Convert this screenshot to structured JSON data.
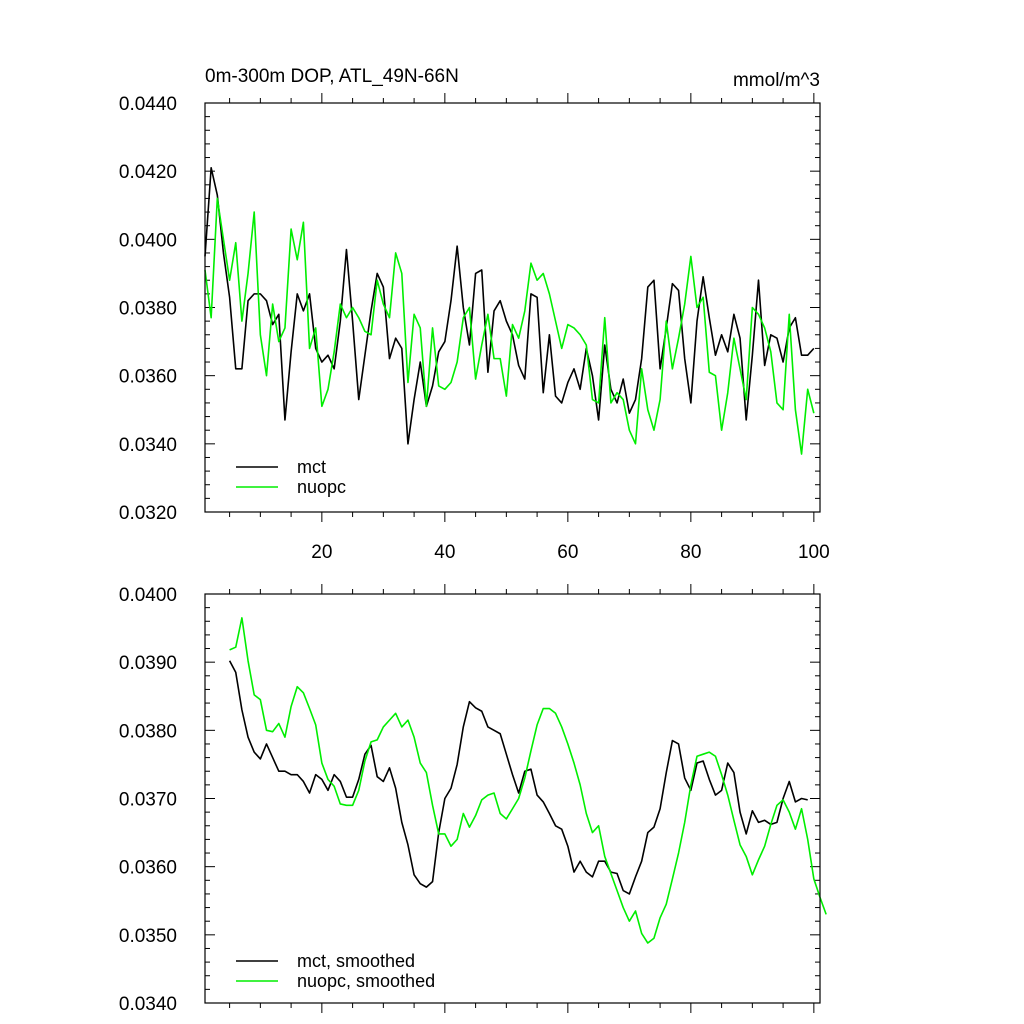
{
  "chart_data": [
    {
      "id": "top",
      "type": "line",
      "title": "0m-300m DOP, ATL_49N-66N",
      "units": "mmol/m^3",
      "xlabel": "",
      "ylabel": "",
      "xlim": [
        1,
        101
      ],
      "ylim": [
        0.032,
        0.044
      ],
      "x_ticks": [
        20,
        40,
        60,
        80,
        100
      ],
      "x_tick_labels": [
        "20",
        "40",
        "60",
        "80",
        "100"
      ],
      "y_ticks": [
        0.032,
        0.034,
        0.036,
        0.038,
        0.04,
        0.042,
        0.044
      ],
      "y_tick_labels": [
        "0.0320",
        "0.0340",
        "0.0360",
        "0.0380",
        "0.0400",
        "0.0420",
        "0.0440"
      ],
      "legend_position": "bottom-left",
      "series": [
        {
          "name": "mct",
          "color": "#000000",
          "x_start": 1,
          "values": [
            0.0395,
            0.0421,
            0.0413,
            0.0396,
            0.0383,
            0.0362,
            0.0362,
            0.0382,
            0.0384,
            0.0384,
            0.0382,
            0.0375,
            0.0378,
            0.0347,
            0.0367,
            0.0384,
            0.0379,
            0.0384,
            0.0368,
            0.0364,
            0.0366,
            0.0362,
            0.0376,
            0.0397,
            0.0376,
            0.0353,
            0.0366,
            0.0379,
            0.039,
            0.0386,
            0.0365,
            0.0371,
            0.0368,
            0.034,
            0.0353,
            0.0364,
            0.0351,
            0.0357,
            0.0367,
            0.037,
            0.0382,
            0.0398,
            0.038,
            0.0369,
            0.039,
            0.0391,
            0.0361,
            0.0379,
            0.0382,
            0.0376,
            0.0372,
            0.0363,
            0.0359,
            0.0384,
            0.0383,
            0.0355,
            0.0372,
            0.0354,
            0.0352,
            0.0358,
            0.0362,
            0.0356,
            0.0368,
            0.036,
            0.0347,
            0.0369,
            0.0356,
            0.0352,
            0.0359,
            0.0349,
            0.0353,
            0.0365,
            0.0386,
            0.0388,
            0.0362,
            0.0374,
            0.0387,
            0.0385,
            0.0365,
            0.0352,
            0.0376,
            0.0389,
            0.0377,
            0.0366,
            0.0372,
            0.0367,
            0.0378,
            0.0371,
            0.0347,
            0.0366,
            0.0388,
            0.0363,
            0.0372,
            0.0371,
            0.0364,
            0.0374,
            0.0377,
            0.0366,
            0.0366,
            0.0368
          ]
        },
        {
          "name": "nuopc",
          "color": "#00ee00",
          "x_start": 1,
          "values": [
            0.0391,
            0.0377,
            0.0412,
            0.04,
            0.0388,
            0.0399,
            0.0376,
            0.039,
            0.0408,
            0.0372,
            0.036,
            0.0381,
            0.037,
            0.0374,
            0.0403,
            0.0394,
            0.0405,
            0.0368,
            0.0374,
            0.0351,
            0.0356,
            0.0367,
            0.0381,
            0.0377,
            0.038,
            0.0377,
            0.0373,
            0.0372,
            0.0388,
            0.0381,
            0.0377,
            0.0396,
            0.039,
            0.0358,
            0.0378,
            0.0374,
            0.0351,
            0.0374,
            0.0357,
            0.0356,
            0.0358,
            0.0364,
            0.0377,
            0.038,
            0.0359,
            0.0369,
            0.0378,
            0.0365,
            0.0365,
            0.0354,
            0.0375,
            0.0371,
            0.0379,
            0.0393,
            0.0388,
            0.039,
            0.0384,
            0.0376,
            0.0368,
            0.0375,
            0.0374,
            0.0372,
            0.0369,
            0.0353,
            0.0352,
            0.0377,
            0.0352,
            0.0355,
            0.0353,
            0.0344,
            0.034,
            0.0362,
            0.035,
            0.0344,
            0.0353,
            0.0376,
            0.0362,
            0.0371,
            0.0381,
            0.0395,
            0.038,
            0.0383,
            0.0361,
            0.036,
            0.0344,
            0.0355,
            0.0371,
            0.0362,
            0.0353,
            0.038,
            0.0378,
            0.0374,
            0.0367,
            0.0352,
            0.035,
            0.0378,
            0.035,
            0.0337,
            0.0356,
            0.0349
          ]
        }
      ]
    },
    {
      "id": "bottom",
      "type": "line",
      "title": "",
      "xlabel": "",
      "ylabel": "",
      "xlim": [
        1,
        101
      ],
      "ylim": [
        0.034,
        0.04
      ],
      "x_ticks": [
        20,
        40,
        60,
        80,
        100
      ],
      "x_tick_labels": [],
      "y_ticks": [
        0.034,
        0.035,
        0.036,
        0.037,
        0.038,
        0.039,
        0.04
      ],
      "y_tick_labels": [
        "0.0340",
        "0.0350",
        "0.0360",
        "0.0370",
        "0.0380",
        "0.0390",
        "0.0400"
      ],
      "legend_position": "bottom-left",
      "series": [
        {
          "name": "mct, smoothed",
          "color": "#000000",
          "x_start": 5,
          "values": [
            0.03902,
            0.03885,
            0.0383,
            0.0379,
            0.03768,
            0.03758,
            0.0378,
            0.0376,
            0.0374,
            0.0374,
            0.03735,
            0.03735,
            0.03725,
            0.03708,
            0.03735,
            0.03728,
            0.03712,
            0.03735,
            0.03725,
            0.03702,
            0.03702,
            0.03728,
            0.03765,
            0.03778,
            0.03732,
            0.03725,
            0.03745,
            0.03715,
            0.03665,
            0.03632,
            0.03588,
            0.03575,
            0.0357,
            0.03578,
            0.0365,
            0.037,
            0.03715,
            0.0375,
            0.03805,
            0.03842,
            0.03833,
            0.03828,
            0.03805,
            0.038,
            0.03795,
            0.03765,
            0.03735,
            0.03708,
            0.0374,
            0.03743,
            0.03705,
            0.03695,
            0.03678,
            0.0366,
            0.03655,
            0.0363,
            0.03592,
            0.03608,
            0.03592,
            0.03585,
            0.03608,
            0.03608,
            0.03592,
            0.0359,
            0.03565,
            0.0356,
            0.03585,
            0.03608,
            0.0365,
            0.03658,
            0.03685,
            0.03738,
            0.03785,
            0.0378,
            0.0373,
            0.03712,
            0.03752,
            0.03755,
            0.03728,
            0.03705,
            0.03712,
            0.03752,
            0.03738,
            0.0368,
            0.03648,
            0.03682,
            0.03665,
            0.03668,
            0.03662,
            0.03665,
            0.037,
            0.03725,
            0.03695,
            0.037,
            0.03698
          ]
        },
        {
          "name": "nuopc, smoothed",
          "color": "#00ee00",
          "x_start": 5,
          "values": [
            0.03918,
            0.03922,
            0.03965,
            0.03902,
            0.03852,
            0.03845,
            0.038,
            0.03798,
            0.0381,
            0.0379,
            0.03835,
            0.03864,
            0.03855,
            0.03832,
            0.03808,
            0.03752,
            0.03728,
            0.03718,
            0.03692,
            0.0369,
            0.0369,
            0.03712,
            0.03755,
            0.03783,
            0.03786,
            0.03805,
            0.03815,
            0.03825,
            0.03805,
            0.03815,
            0.0379,
            0.03752,
            0.03738,
            0.0369,
            0.03648,
            0.03648,
            0.0363,
            0.0364,
            0.03678,
            0.03658,
            0.03675,
            0.03698,
            0.03705,
            0.03708,
            0.03678,
            0.0367,
            0.03685,
            0.037,
            0.0373,
            0.0377,
            0.03808,
            0.03832,
            0.03832,
            0.03825,
            0.03805,
            0.0378,
            0.03752,
            0.0372,
            0.03678,
            0.0365,
            0.0366,
            0.03615,
            0.0359,
            0.03565,
            0.0354,
            0.0352,
            0.03535,
            0.03502,
            0.03488,
            0.03495,
            0.03525,
            0.03545,
            0.03582,
            0.0362,
            0.03665,
            0.0372,
            0.03762,
            0.03765,
            0.03768,
            0.03762,
            0.03735,
            0.03705,
            0.03668,
            0.03632,
            0.03615,
            0.03588,
            0.0361,
            0.0363,
            0.03662,
            0.0369,
            0.03698,
            0.0368,
            0.03655,
            0.03685,
            0.0364,
            0.03582,
            0.03555,
            0.0353
          ]
        }
      ]
    }
  ]
}
